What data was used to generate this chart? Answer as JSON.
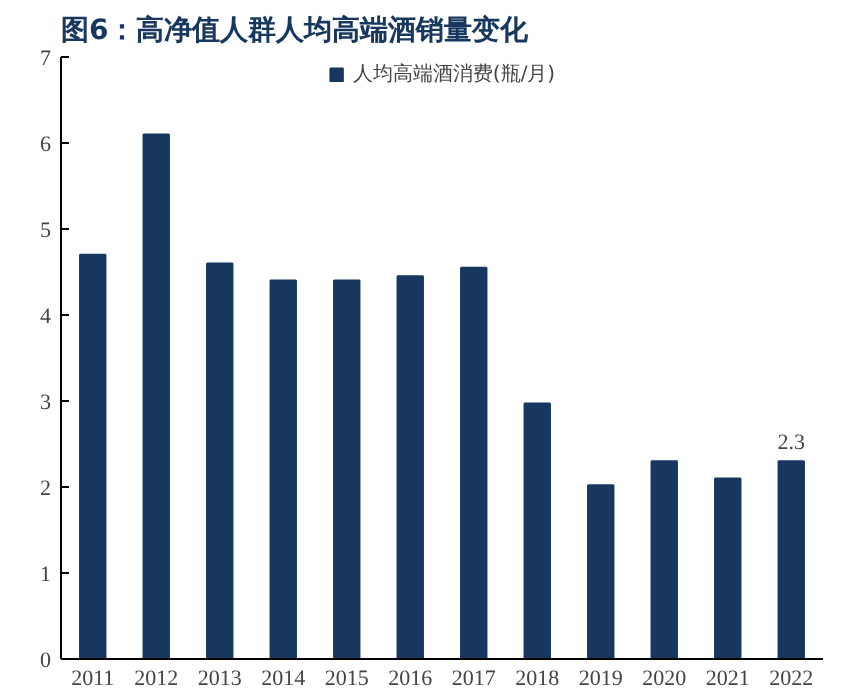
{
  "chart_data": {
    "type": "bar",
    "title": "图6：高净值人群人均高端酒销量变化",
    "categories": [
      "2011",
      "2012",
      "2013",
      "2014",
      "2015",
      "2016",
      "2017",
      "2018",
      "2019",
      "2020",
      "2021",
      "2022"
    ],
    "series": [
      {
        "name": "人均高端酒消费(瓶/月)",
        "color": "#17375e",
        "values": [
          4.7,
          6.1,
          4.6,
          4.4,
          4.4,
          4.45,
          4.55,
          2.97,
          2.02,
          2.3,
          2.1,
          2.3
        ],
        "value_labels": [
          null,
          null,
          null,
          null,
          null,
          null,
          null,
          null,
          null,
          null,
          null,
          "2.3"
        ]
      }
    ],
    "ylim": [
      0,
      7
    ],
    "yticks": [
      0,
      1,
      2,
      3,
      4,
      5,
      6,
      7
    ],
    "grid": false,
    "legend": "top"
  }
}
